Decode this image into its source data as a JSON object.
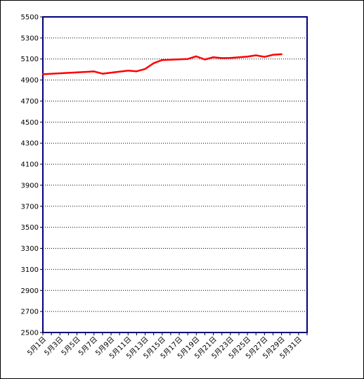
{
  "chart_data": {
    "type": "line",
    "title": "",
    "xlabel": "",
    "ylabel": "",
    "ylim": [
      2500,
      5500
    ],
    "yticks": [
      2500,
      2700,
      2900,
      3100,
      3300,
      3500,
      3700,
      3900,
      4100,
      4300,
      4500,
      4700,
      4900,
      5100,
      5300,
      5500
    ],
    "xtick_labels": [
      "5月1日",
      "5月3日",
      "5月5日",
      "5月7日",
      "5月9日",
      "5月11日",
      "5月13日",
      "5月15日",
      "5月17日",
      "5月19日",
      "5月21日",
      "5月23日",
      "5月25日",
      "5月27日",
      "5月29日",
      "5月31日"
    ],
    "grid": true,
    "legend": "none",
    "series": [
      {
        "color": "#ff0000",
        "x": [
          1,
          7,
          8,
          11,
          12,
          13,
          14,
          15,
          18,
          19,
          20,
          21,
          22,
          23,
          25,
          26,
          27,
          28,
          29
        ],
        "values": [
          4955,
          4982,
          4960,
          4990,
          4983,
          5005,
          5060,
          5090,
          5100,
          5125,
          5095,
          5117,
          5108,
          5110,
          5122,
          5135,
          5120,
          5140,
          5145
        ]
      }
    ]
  }
}
